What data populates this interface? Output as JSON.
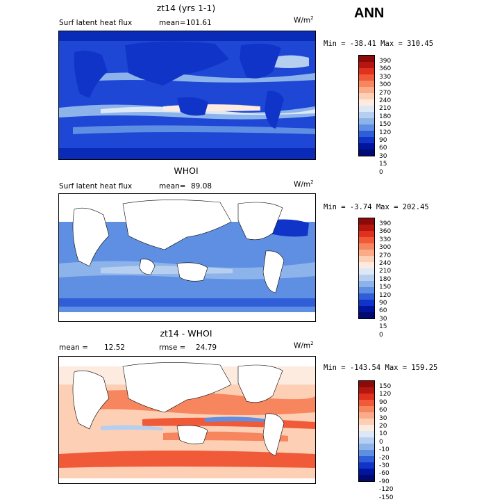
{
  "season": "ANN",
  "units_base": "W/m",
  "units_exp": "2",
  "panels": [
    {
      "title": "zt14 (yrs 1-1)",
      "left_label": "Surf latent heat flux",
      "stat_label": "mean=",
      "stat_value": "101.61",
      "minmax": "Min = -38.41  Max = 310.45",
      "levels": [
        "390",
        "360",
        "330",
        "300",
        "270",
        "240",
        "210",
        "180",
        "150",
        "120",
        "90",
        "60",
        "30",
        "15",
        "0"
      ],
      "colors": [
        "#8b0a0a",
        "#b5160d",
        "#e0301e",
        "#f05a38",
        "#f7855e",
        "#fbab88",
        "#fdd0b6",
        "#fdebe0",
        "#dde8f6",
        "#b6cff0",
        "#8db4ea",
        "#5f8fe2",
        "#2f5ed8",
        "#1034c8",
        "#00149e",
        "#000a70"
      ],
      "map_base": "#1f47d6"
    },
    {
      "title": "WHOI",
      "left_label": "Surf latent heat flux",
      "stat_label": "mean=",
      "stat_value": "89.08",
      "minmax": "Min =   -3.74  Max = 202.45",
      "levels": [
        "390",
        "360",
        "330",
        "300",
        "270",
        "240",
        "210",
        "180",
        "150",
        "120",
        "90",
        "60",
        "30",
        "15",
        "0"
      ],
      "colors": [
        "#8b0a0a",
        "#b5160d",
        "#e0301e",
        "#f05a38",
        "#f7855e",
        "#fbab88",
        "#fdd0b6",
        "#fdebe0",
        "#dde8f6",
        "#b6cff0",
        "#8db4ea",
        "#5f8fe2",
        "#2f5ed8",
        "#1034c8",
        "#00149e",
        "#000a70"
      ],
      "map_base": "#3f6ee0"
    },
    {
      "title": "zt14 - WHOI",
      "left_label": "mean =",
      "stat_label": "rmse =",
      "stat_value": "24.79",
      "left_value": "12.52",
      "minmax": "Min = -143.54  Max = 159.25",
      "levels": [
        "150",
        "120",
        "90",
        "60",
        "30",
        "20",
        "10",
        "0",
        "-10",
        "-20",
        "-30",
        "-60",
        "-90",
        "-120",
        "-150"
      ],
      "colors": [
        "#8b0a0a",
        "#b5160d",
        "#e0301e",
        "#f05a38",
        "#f7855e",
        "#fbab88",
        "#fdd0b6",
        "#fdebe0",
        "#dde8f6",
        "#b6cff0",
        "#8db4ea",
        "#5f8fe2",
        "#2f5ed8",
        "#1034c8",
        "#00149e",
        "#000a70"
      ],
      "map_base": "#f6a98a"
    }
  ]
}
